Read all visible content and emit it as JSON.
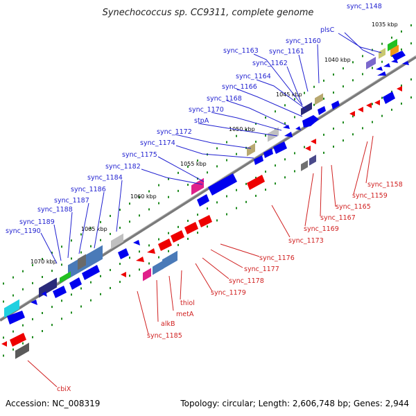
{
  "title": "Synechococcus sp. CC9311, complete genome",
  "footer": {
    "accession": "Accession: NC_008319",
    "topology": "Topology: circular; Length: 2,606,748 bp; Genes: 2,944"
  },
  "colors": {
    "forward_gene": "#0000ee",
    "reverse_gene": "#ee0000",
    "forward_label": "#1f1fd0",
    "reverse_label": "#d01f1f",
    "backbone": "#808080",
    "tick": "#1e8a1e"
  },
  "axis": {
    "kbp_labels": [
      "1035 kbp",
      "1040 kbp",
      "1045 kbp",
      "1050 kbp",
      "1055 kbp",
      "1060 kbp",
      "1065 kbp",
      "1070 kbp"
    ]
  },
  "forward_labels": [
    "sync_1148",
    "plsC",
    "sync_1160",
    "sync_1161",
    "sync_1163",
    "sync_1162",
    "sync_1164",
    "sync_1166",
    "sync_1168",
    "sync_1170",
    "stpA",
    "sync_1172",
    "sync_1174",
    "sync_1175",
    "sync_1182",
    "sync_1184",
    "sync_1186",
    "sync_1187",
    "sync_1188",
    "sync_1189",
    "sync_1190"
  ],
  "reverse_labels": [
    "sync_1158",
    "sync_1159",
    "sync_1165",
    "sync_1167",
    "sync_1169",
    "sync_1173",
    "sync_1176",
    "sync_1177",
    "sync_1178",
    "sync_1179",
    "thiol",
    "metA",
    "alkB",
    "sync_1185",
    "cbiX"
  ]
}
